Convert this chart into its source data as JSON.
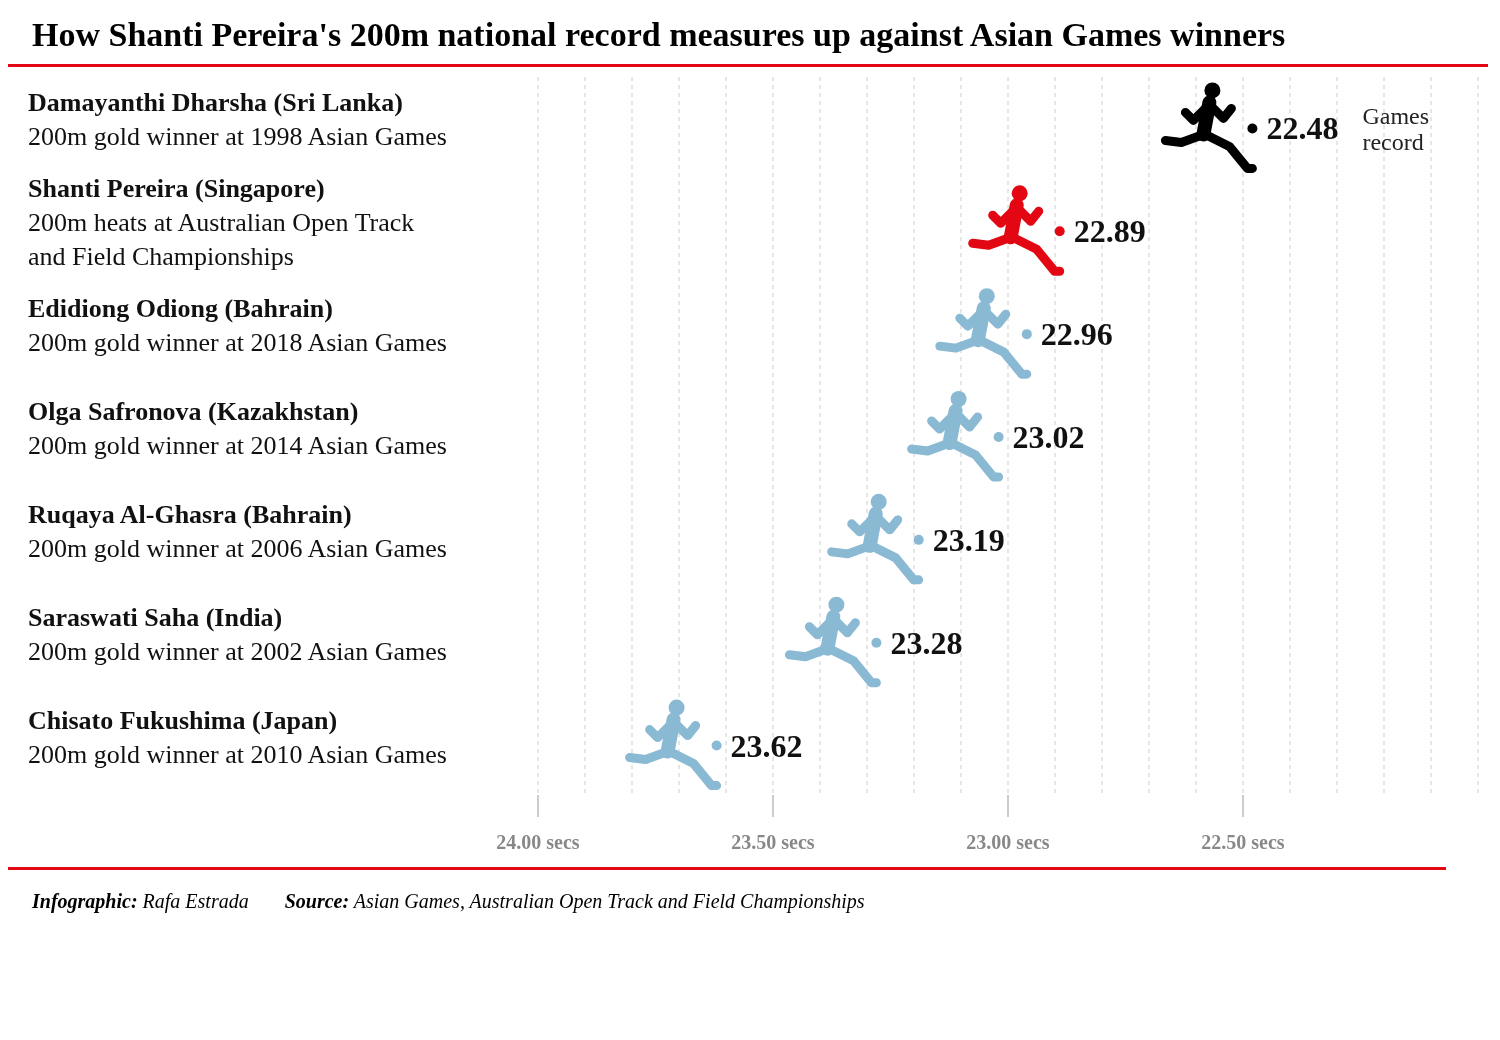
{
  "chart_data": {
    "type": "scatter",
    "orientation": "horizontal",
    "title": "How Shanti Pereira's 200m national record measures up against Asian Games winners",
    "categories": [
      "Damayanthi Dharsha (Sri Lanka)\n200m gold winner at 1998 Asian Games",
      "Shanti Pereira (Singapore)\n200m heats at Australian Open Track\nand Field Championships",
      "Edidiong Odiong (Bahrain)\n200m gold winner at 2018 Asian Games",
      "Olga Safronova (Kazakhstan)\n200m gold winner at 2014 Asian Games",
      "Ruqaya Al-Ghasra (Bahrain)\n200m gold winner at 2006 Asian Games",
      "Saraswati Saha (India)\n200m gold winner at 2002 Asian Games",
      "Chisato Fukushima (Japan)\n200m gold winner at 2010 Asian Games"
    ],
    "values": [
      22.48,
      22.89,
      22.96,
      23.02,
      23.19,
      23.28,
      23.62
    ],
    "colors": [
      "#000000",
      "#e30613",
      "#8ab9d4",
      "#8ab9d4",
      "#8ab9d4",
      "#8ab9d4",
      "#8ab9d4"
    ],
    "data_labels": true,
    "xlim": [
      24,
      22
    ],
    "xticks": [
      {
        "value": 24,
        "label": "24.00 secs"
      },
      {
        "value": 23.9,
        "label": null
      },
      {
        "value": 23.8,
        "label": null
      },
      {
        "value": 23.7,
        "label": null
      },
      {
        "value": 23.6,
        "label": null
      },
      {
        "value": 23.5,
        "label": "23.50 secs"
      },
      {
        "value": 23.4,
        "label": null
      },
      {
        "value": 23.3,
        "label": null
      },
      {
        "value": 23.2,
        "label": null
      },
      {
        "value": 23.1,
        "label": null
      },
      {
        "value": 23,
        "label": "23.00 secs"
      },
      {
        "value": 22.9,
        "label": null
      },
      {
        "value": 22.8,
        "label": null
      },
      {
        "value": 22.7,
        "label": null
      },
      {
        "value": 22.6,
        "label": null
      },
      {
        "value": 22.5,
        "label": "22.50 secs"
      },
      {
        "value": 22.4,
        "label": null
      },
      {
        "value": 22.3,
        "label": null
      },
      {
        "value": 22.2,
        "label": null
      },
      {
        "value": 22.1,
        "label": null
      }
    ],
    "grid": "x",
    "annotations": [
      "Games record",
      "Infographic: Rafa Estrada",
      "Source: Asian Games, Australian Open Track and Field Championships"
    ]
  }
}
